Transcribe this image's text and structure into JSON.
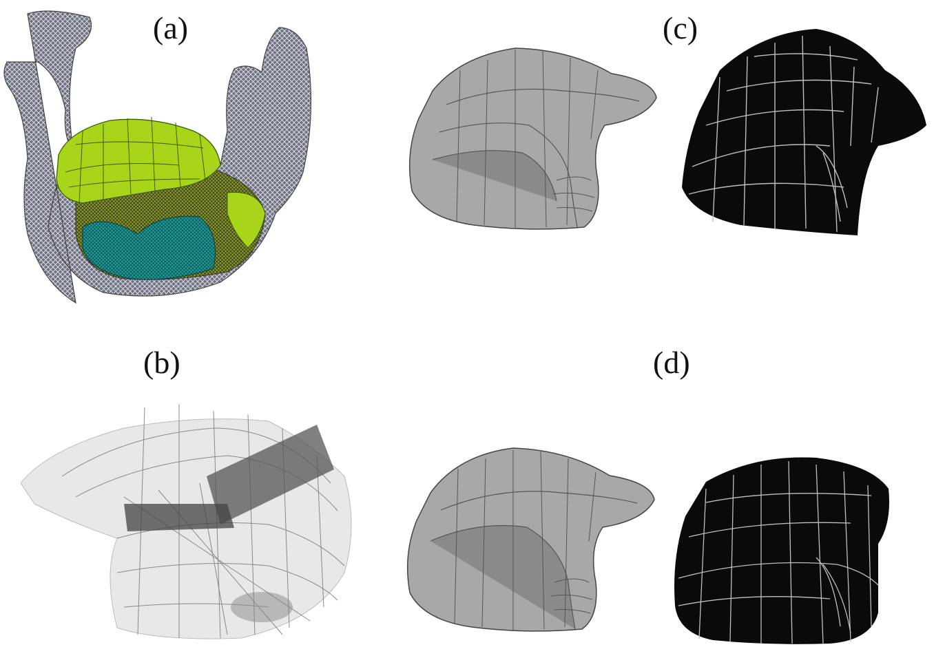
{
  "figure": {
    "labels": {
      "a": "(a)",
      "b": "(b)",
      "c": "(c)",
      "d": "(d)"
    },
    "colors": {
      "mandible_mesh": "#7d7f8c",
      "tongue_green": "#a6d51a",
      "tissue_yellow": "#8a9a1c",
      "tissue_cyan": "#1a9e9a",
      "solid_gray": "#a8a8a8",
      "dark_gray": "#6e6e6e",
      "wire_black": "#0a0a0a",
      "wire_line": "#bfbfbf"
    }
  }
}
